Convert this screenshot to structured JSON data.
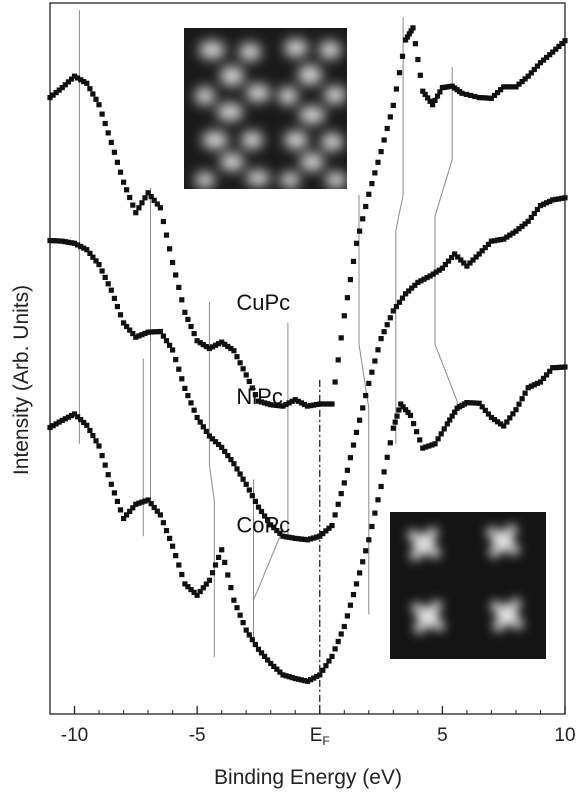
{
  "chart_data": {
    "type": "scatter",
    "title": "",
    "xlabel": "Binding Energy (eV)",
    "ylabel": "Intensity (Arb. Units)",
    "xlim": [
      -11,
      10
    ],
    "ylim": [
      0,
      1
    ],
    "x_ticks": [
      {
        "value": -10,
        "label": "-10"
      },
      {
        "value": -5,
        "label": "-5"
      },
      {
        "value": 0,
        "label": "E",
        "subscript": "F"
      },
      {
        "value": 5,
        "label": "5"
      },
      {
        "value": 10,
        "label": "10"
      }
    ],
    "fermi_level_line": 0,
    "series": [
      {
        "name": "CuPc",
        "label_at": [
          -3.4,
          0.568
        ],
        "points": [
          [
            -11,
            0.867
          ],
          [
            -10.5,
            0.881
          ],
          [
            -10,
            0.897
          ],
          [
            -9.5,
            0.887
          ],
          [
            -9,
            0.857
          ],
          [
            -8.5,
            0.804
          ],
          [
            -8,
            0.748
          ],
          [
            -7.5,
            0.705
          ],
          [
            -7,
            0.733
          ],
          [
            -6.5,
            0.712
          ],
          [
            -6,
            0.635
          ],
          [
            -5.5,
            0.565
          ],
          [
            -5,
            0.525
          ],
          [
            -4.5,
            0.514
          ],
          [
            -4,
            0.523
          ],
          [
            -3.5,
            0.511
          ],
          [
            -3,
            0.477
          ],
          [
            -2.5,
            0.44
          ],
          [
            -2,
            0.435
          ],
          [
            -1.5,
            0.433
          ],
          [
            -1,
            0.442
          ],
          [
            -0.5,
            0.433
          ],
          [
            0,
            0.436
          ],
          [
            0.5,
            0.436
          ],
          [
            1,
            0.56
          ],
          [
            1.5,
            0.662
          ],
          [
            2,
            0.731
          ],
          [
            2.5,
            0.791
          ],
          [
            3,
            0.856
          ],
          [
            3.5,
            0.948
          ],
          [
            3.8,
            0.965
          ],
          [
            4.2,
            0.876
          ],
          [
            4.6,
            0.857
          ],
          [
            5,
            0.881
          ],
          [
            5.4,
            0.883
          ],
          [
            5.8,
            0.873
          ],
          [
            6.5,
            0.867
          ],
          [
            7,
            0.866
          ],
          [
            7.5,
            0.882
          ],
          [
            8,
            0.882
          ],
          [
            8.5,
            0.897
          ],
          [
            9,
            0.916
          ],
          [
            9.5,
            0.931
          ],
          [
            10,
            0.947
          ]
        ]
      },
      {
        "name": "NiPc",
        "label_at": [
          -3.4,
          0.436
        ],
        "points": [
          [
            -11,
            0.666
          ],
          [
            -10.5,
            0.665
          ],
          [
            -10,
            0.662
          ],
          [
            -9.5,
            0.653
          ],
          [
            -9,
            0.632
          ],
          [
            -8.5,
            0.596
          ],
          [
            -8,
            0.55
          ],
          [
            -7.5,
            0.53
          ],
          [
            -7,
            0.537
          ],
          [
            -6.5,
            0.538
          ],
          [
            -6,
            0.512
          ],
          [
            -5.5,
            0.458
          ],
          [
            -5,
            0.417
          ],
          [
            -4.5,
            0.391
          ],
          [
            -4,
            0.375
          ],
          [
            -3.5,
            0.352
          ],
          [
            -3,
            0.323
          ],
          [
            -2.5,
            0.291
          ],
          [
            -2,
            0.266
          ],
          [
            -1.5,
            0.25
          ],
          [
            -1,
            0.247
          ],
          [
            -0.5,
            0.245
          ],
          [
            0,
            0.25
          ],
          [
            0.5,
            0.265
          ],
          [
            1,
            0.325
          ],
          [
            1.5,
            0.396
          ],
          [
            2,
            0.465
          ],
          [
            2.5,
            0.528
          ],
          [
            3,
            0.567
          ],
          [
            3.5,
            0.591
          ],
          [
            4,
            0.607
          ],
          [
            4.5,
            0.616
          ],
          [
            5,
            0.627
          ],
          [
            5.5,
            0.647
          ],
          [
            6,
            0.63
          ],
          [
            6.5,
            0.647
          ],
          [
            7,
            0.665
          ],
          [
            7.5,
            0.668
          ],
          [
            8,
            0.679
          ],
          [
            8.5,
            0.693
          ],
          [
            9,
            0.715
          ],
          [
            9.5,
            0.723
          ],
          [
            10,
            0.726
          ]
        ]
      },
      {
        "name": "CoPc",
        "label_at": [
          -3.4,
          0.255
        ],
        "points": [
          [
            -11,
            0.403
          ],
          [
            -10.5,
            0.413
          ],
          [
            -10,
            0.422
          ],
          [
            -9.5,
            0.406
          ],
          [
            -9,
            0.377
          ],
          [
            -8.5,
            0.323
          ],
          [
            -8,
            0.275
          ],
          [
            -7.5,
            0.295
          ],
          [
            -7,
            0.301
          ],
          [
            -6.5,
            0.28
          ],
          [
            -6,
            0.236
          ],
          [
            -5.5,
            0.183
          ],
          [
            -5,
            0.167
          ],
          [
            -4.5,
            0.188
          ],
          [
            -4,
            0.231
          ],
          [
            -3.5,
            0.16
          ],
          [
            -3,
            0.118
          ],
          [
            -2.5,
            0.091
          ],
          [
            -2,
            0.071
          ],
          [
            -1.5,
            0.055
          ],
          [
            -1,
            0.05
          ],
          [
            -0.5,
            0.046
          ],
          [
            0,
            0.055
          ],
          [
            0.5,
            0.081
          ],
          [
            1,
            0.123
          ],
          [
            1.5,
            0.183
          ],
          [
            2,
            0.245
          ],
          [
            2.5,
            0.32
          ],
          [
            3,
            0.402
          ],
          [
            3.3,
            0.436
          ],
          [
            3.7,
            0.42
          ],
          [
            4.2,
            0.374
          ],
          [
            4.7,
            0.38
          ],
          [
            5.2,
            0.408
          ],
          [
            5.6,
            0.43
          ],
          [
            6,
            0.438
          ],
          [
            6.5,
            0.437
          ],
          [
            7,
            0.417
          ],
          [
            7.5,
            0.405
          ],
          [
            8,
            0.428
          ],
          [
            8.5,
            0.459
          ],
          [
            9,
            0.467
          ],
          [
            9.5,
            0.487
          ],
          [
            10,
            0.488
          ]
        ]
      }
    ],
    "guide_lines": {
      "CuPc_to_NiPc": [
        [
          [
            -9.8,
            0.99
          ],
          [
            -9.8,
            0.38
          ]
        ],
        [
          [
            -6.9,
            0.74
          ],
          [
            -6.9,
            0.3
          ]
        ],
        [
          [
            -1.3,
            0.55
          ],
          [
            -1.3,
            0.25
          ]
        ],
        [
          [
            1.6,
            0.73
          ],
          [
            1.6,
            0.52
          ],
          [
            2.0,
            0.43
          ],
          [
            2.0,
            0.14
          ]
        ],
        [
          [
            3.4,
            0.98
          ],
          [
            3.4,
            0.73
          ],
          [
            3.1,
            0.68
          ],
          [
            3.1,
            0.38
          ]
        ],
        [
          [
            5.4,
            0.91
          ],
          [
            5.4,
            0.78
          ],
          [
            4.7,
            0.7
          ],
          [
            4.7,
            0.52
          ],
          [
            5.6,
            0.44
          ],
          [
            5.6,
            0.42
          ]
        ]
      ],
      "NiPc_to_CoPc": [
        [
          [
            -7.2,
            0.5
          ],
          [
            -7.2,
            0.25
          ]
        ],
        [
          [
            -4.5,
            0.58
          ],
          [
            -4.5,
            0.35
          ],
          [
            -4.3,
            0.3
          ],
          [
            -4.3,
            0.08
          ]
        ],
        [
          [
            -2.7,
            0.33
          ],
          [
            -2.7,
            0.1
          ]
        ],
        [
          [
            -2.7,
            0.16
          ],
          [
            -1.5,
            0.26
          ]
        ]
      ]
    },
    "insets": [
      {
        "name": "stm-image-top",
        "position": "top-center",
        "pattern": "dark square lattice with bright lobes"
      },
      {
        "name": "stm-image-bottom",
        "position": "bottom-right",
        "pattern": "bright cross-shaped molecules"
      }
    ]
  },
  "colors": {
    "markers": "#111111",
    "guide_lines": "#8a8a8a",
    "axes": "#222222"
  }
}
